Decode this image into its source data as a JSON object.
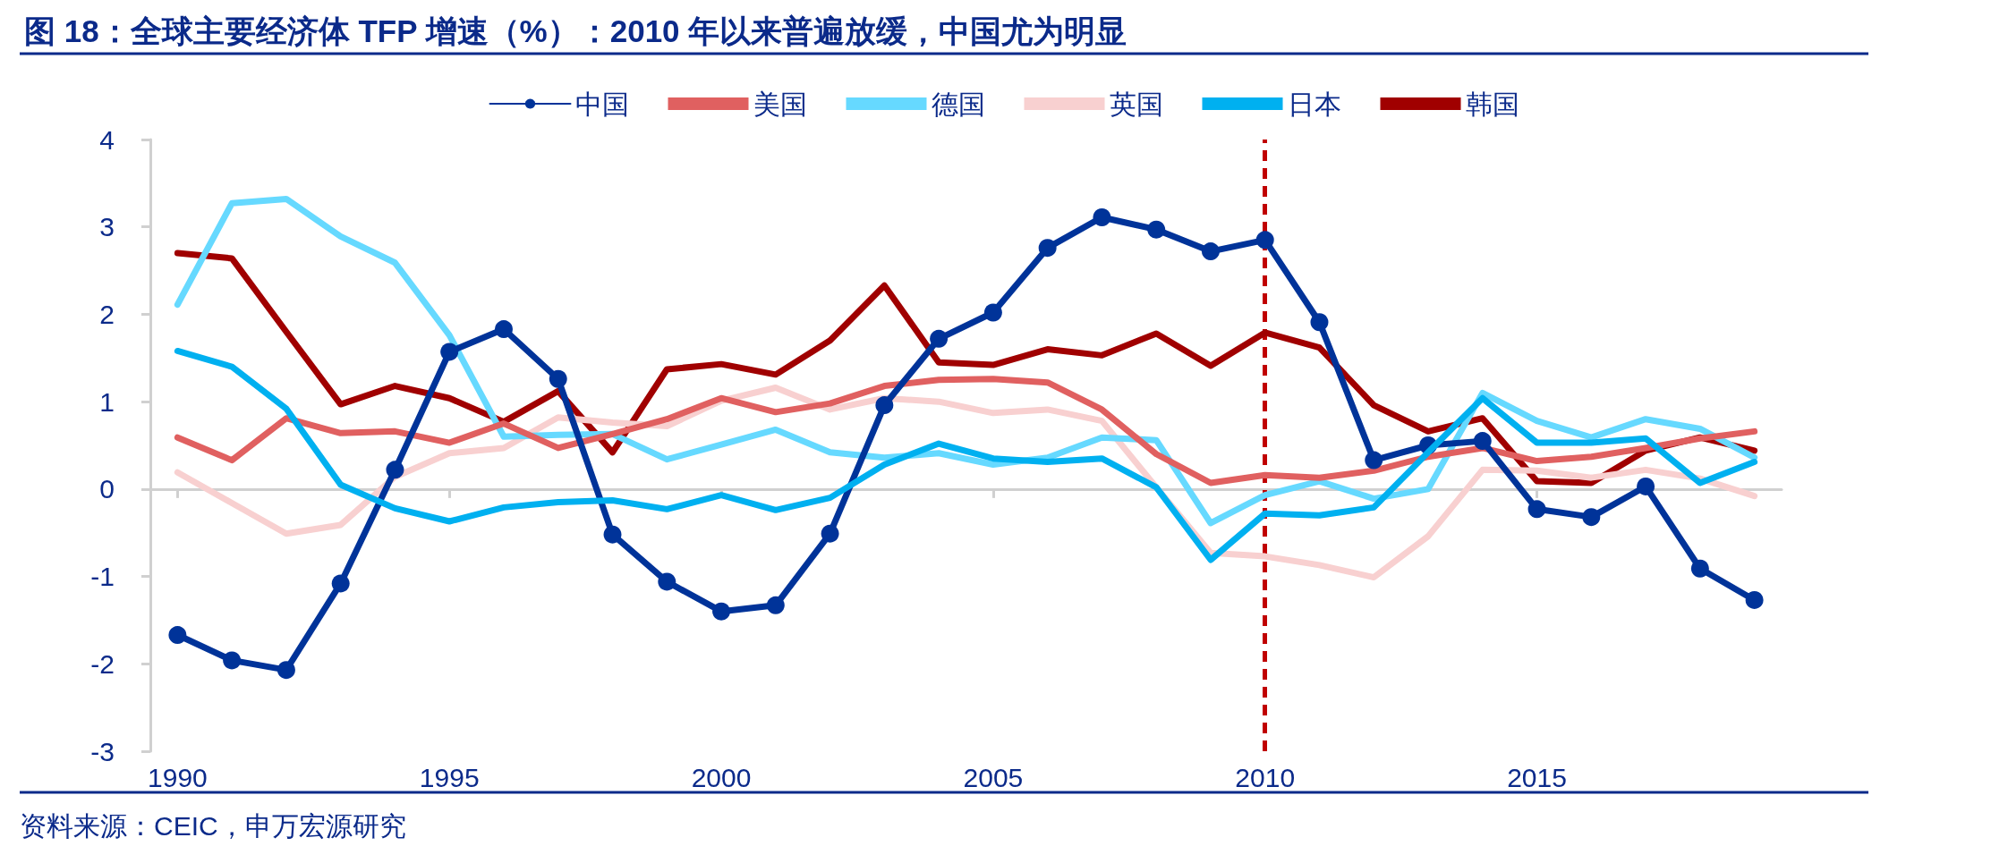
{
  "chart_data": {
    "type": "line",
    "title": "图 18：全球主要经济体 TFP 增速（%）：2010 年以来普遍放缓，中国尤为明显",
    "annotations": [
      "资料来源：CEIC，申万宏源研究"
    ],
    "x": [
      1990,
      1991,
      1992,
      1993,
      1994,
      1995,
      1996,
      1997,
      1998,
      1999,
      2000,
      2001,
      2002,
      2003,
      2004,
      2005,
      2006,
      2007,
      2008,
      2009,
      2010,
      2011,
      2012,
      2013,
      2014,
      2015,
      2016,
      2017,
      2018,
      2019
    ],
    "series": [
      {
        "name": "中国",
        "color": "#003399",
        "marker": "circle",
        "values": [
          -1.67,
          -1.96,
          -2.07,
          -1.08,
          0.22,
          1.57,
          1.83,
          1.26,
          -0.52,
          -1.06,
          -1.4,
          -1.33,
          -0.51,
          0.96,
          1.72,
          2.02,
          2.76,
          3.11,
          2.97,
          2.72,
          2.85,
          1.91,
          0.33,
          0.5,
          0.55,
          -0.23,
          -0.32,
          0.03,
          -0.91,
          -1.27
        ]
      },
      {
        "name": "美国",
        "color": "#e06060",
        "marker": "none",
        "values": [
          0.59,
          0.33,
          0.81,
          0.64,
          0.66,
          0.53,
          0.75,
          0.47,
          0.63,
          0.8,
          1.04,
          0.88,
          0.98,
          1.18,
          1.25,
          1.26,
          1.22,
          0.91,
          0.4,
          0.07,
          0.16,
          0.13,
          0.21,
          0.37,
          0.47,
          0.32,
          0.37,
          0.47,
          0.58,
          0.66
        ]
      },
      {
        "name": "德国",
        "color": "#66d9ff",
        "marker": "none",
        "values": [
          2.11,
          3.27,
          3.32,
          2.89,
          2.59,
          1.76,
          0.6,
          0.62,
          0.63,
          0.34,
          0.51,
          0.68,
          0.42,
          0.36,
          0.41,
          0.28,
          0.36,
          0.59,
          0.56,
          -0.39,
          -0.07,
          0.09,
          -0.11,
          0.0,
          1.1,
          0.78,
          0.59,
          0.8,
          0.69,
          0.36
        ]
      },
      {
        "name": "英国",
        "color": "#f8d0d0",
        "marker": "none",
        "values": [
          0.19,
          -0.16,
          -0.51,
          -0.41,
          0.14,
          0.41,
          0.47,
          0.82,
          0.76,
          0.72,
          1.01,
          1.16,
          0.91,
          1.04,
          1.0,
          0.87,
          0.91,
          0.78,
          0.02,
          -0.73,
          -0.77,
          -0.87,
          -1.01,
          -0.54,
          0.22,
          0.21,
          0.13,
          0.22,
          0.12,
          -0.08
        ]
      },
      {
        "name": "日本",
        "color": "#00b0f0",
        "marker": "none",
        "values": [
          1.58,
          1.4,
          0.92,
          0.05,
          -0.22,
          -0.37,
          -0.21,
          -0.15,
          -0.13,
          -0.23,
          -0.07,
          -0.24,
          -0.1,
          0.28,
          0.52,
          0.35,
          0.31,
          0.35,
          0.02,
          -0.81,
          -0.28,
          -0.3,
          -0.21,
          0.42,
          1.04,
          0.53,
          0.53,
          0.58,
          0.07,
          0.31
        ]
      },
      {
        "name": "韩国",
        "color": "#a00000",
        "marker": "none",
        "values": [
          2.7,
          2.64,
          1.8,
          0.97,
          1.18,
          1.04,
          0.77,
          1.12,
          0.42,
          1.37,
          1.43,
          1.31,
          1.7,
          2.33,
          1.45,
          1.42,
          1.6,
          1.53,
          1.78,
          1.41,
          1.79,
          1.62,
          0.96,
          0.66,
          0.81,
          0.09,
          0.07,
          0.44,
          0.59,
          0.44
        ]
      }
    ],
    "xlim": [
      1989.5,
      2019.5
    ],
    "xticks": [
      1990,
      1995,
      2000,
      2005,
      2010,
      2015
    ],
    "ylim": [
      -3,
      4
    ],
    "yticks": [
      -3,
      -2,
      -1,
      0,
      1,
      2,
      3,
      4
    ],
    "ref_lines": [
      {
        "axis": "x",
        "value": 2010,
        "color": "#c00000",
        "line_style": "dashed"
      }
    ],
    "grid": false,
    "legend": "top",
    "line_style": "solid"
  }
}
